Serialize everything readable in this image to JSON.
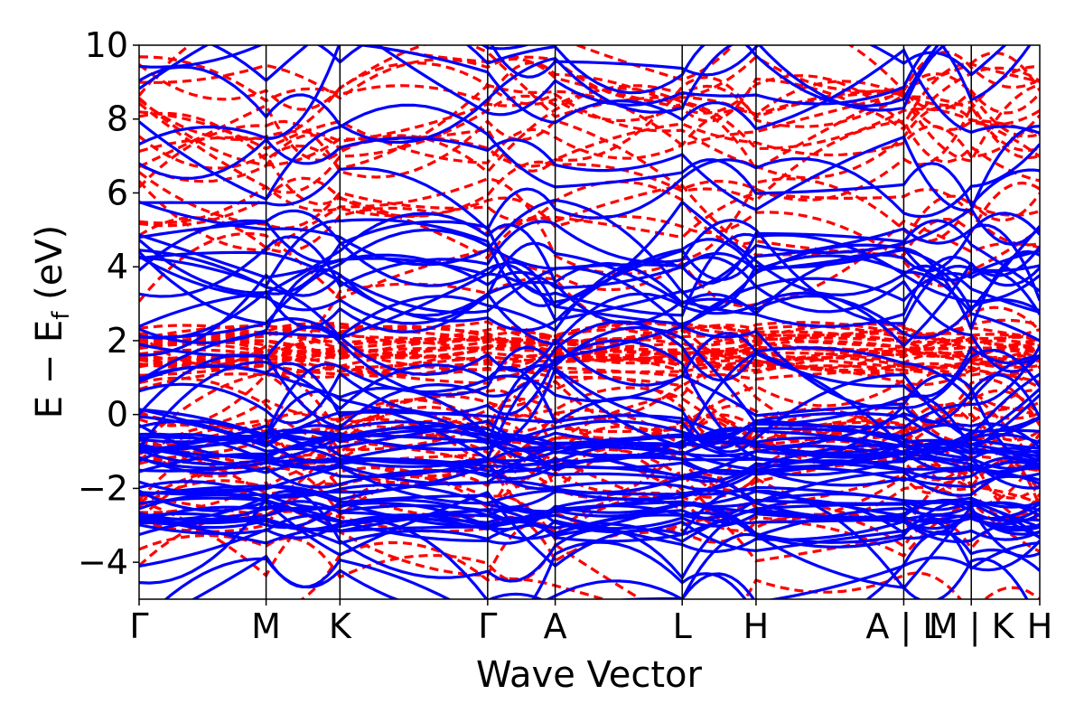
{
  "chart_data": {
    "type": "line",
    "title": "",
    "xlabel": "Wave Vector",
    "ylabel": {
      "main": "E − E",
      "sub": "f",
      "unit": " (eV)"
    },
    "ylim": [
      -5,
      10
    ],
    "yticks": [
      {
        "value": 10,
        "label": "10"
      },
      {
        "value": 8,
        "label": "8"
      },
      {
        "value": 6,
        "label": "6"
      },
      {
        "value": 4,
        "label": "4"
      },
      {
        "value": 2,
        "label": "2"
      },
      {
        "value": 0,
        "label": "0"
      },
      {
        "value": -2,
        "label": "−2"
      },
      {
        "value": -4,
        "label": "−4"
      }
    ],
    "xlim": [
      0,
      1
    ],
    "kpoints": [
      {
        "label": "Γ",
        "x": 0.0
      },
      {
        "label": "M",
        "x": 0.141
      },
      {
        "label": "K",
        "x": 0.223
      },
      {
        "label": "Γ",
        "x": 0.387
      },
      {
        "label": "A",
        "x": 0.462
      },
      {
        "label": "L",
        "x": 0.603
      },
      {
        "label": "H",
        "x": 0.685
      },
      {
        "label": "A | L",
        "x": 0.849
      },
      {
        "label": "M | K",
        "x": 0.924
      },
      {
        "label": "H",
        "x": 1.0
      }
    ],
    "grid": false,
    "legend": "none",
    "series": [
      {
        "style": "solid",
        "color": "#0000ff"
      },
      {
        "style": "dashed",
        "color": "#ff0000"
      }
    ]
  }
}
